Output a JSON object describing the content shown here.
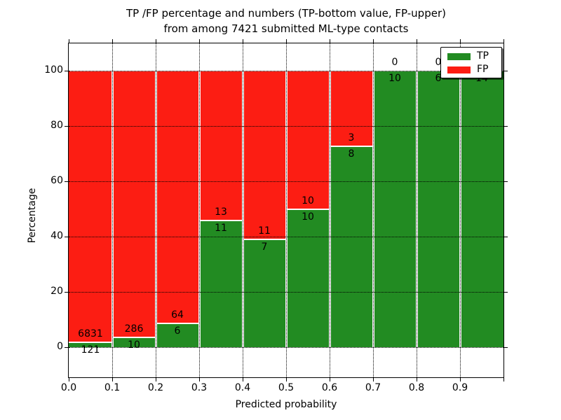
{
  "chart_data": {
    "type": "bar",
    "subtype": "stacked_percentage",
    "title_lines": [
      "TP /FP percentage and numbers (TP-bottom value, FP-upper)",
      "from among 7421 submitted ML-type contacts"
    ],
    "total_submitted": 7421,
    "xlabel": "Predicted probability",
    "ylabel": "Percentage",
    "xlim": [
      0.0,
      1.0
    ],
    "ylim": [
      -11,
      110
    ],
    "bin_width": 0.1,
    "grid": true,
    "x_tick_labels": [
      "0.0",
      "0.1",
      "0.2",
      "0.3",
      "0.4",
      "0.5",
      "0.6",
      "0.7",
      "0.8",
      "0.9"
    ],
    "y_tick_values": [
      0,
      20,
      40,
      60,
      80,
      100
    ],
    "categories": [
      "0.0-0.1",
      "0.1-0.2",
      "0.2-0.3",
      "0.3-0.4",
      "0.4-0.5",
      "0.5-0.6",
      "0.6-0.7",
      "0.7-0.8",
      "0.8-0.9",
      "0.9-1.0"
    ],
    "series": [
      {
        "name": "TP",
        "color": "#228b22",
        "values": [
          121,
          10,
          6,
          11,
          7,
          10,
          8,
          10,
          6,
          14
        ]
      },
      {
        "name": "FP",
        "color": "#fc1d13",
        "values": [
          6831,
          286,
          64,
          13,
          11,
          10,
          3,
          0,
          0,
          0
        ]
      }
    ],
    "tp_percentages": [
      1.74,
      3.38,
      8.57,
      45.83,
      38.89,
      50.0,
      72.73,
      100.0,
      100.0,
      100.0
    ],
    "legend": {
      "position": "upper right",
      "entries": [
        {
          "label": "TP",
          "color": "#228b22"
        },
        {
          "label": "FP",
          "color": "#fc1d13"
        }
      ]
    }
  }
}
